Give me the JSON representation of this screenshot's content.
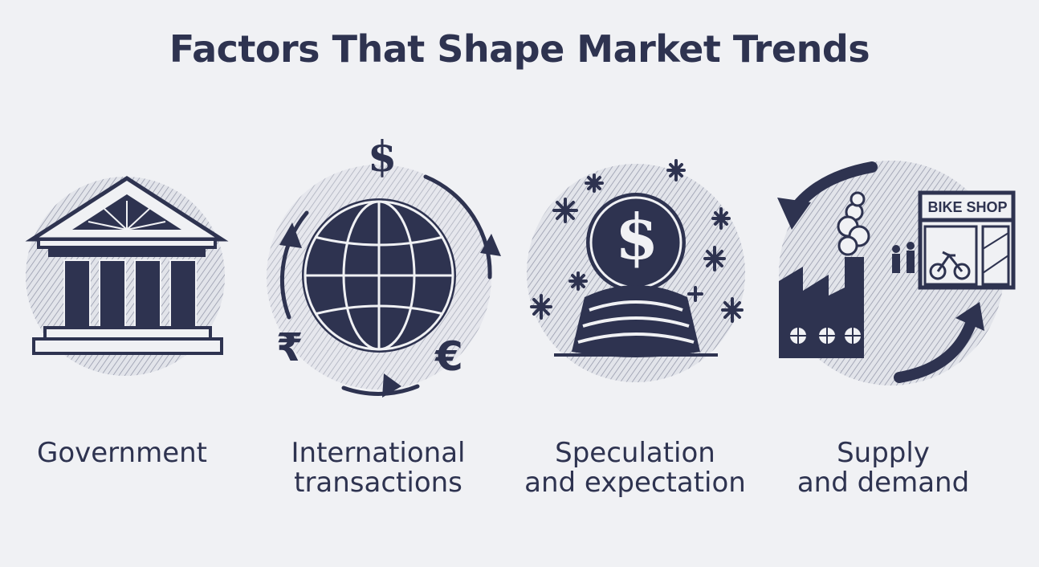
{
  "title": "Factors That Shape Market Trends",
  "factors": [
    {
      "label_lines": [
        "Government"
      ],
      "icon": "bank-building-icon"
    },
    {
      "label_lines": [
        "International",
        "transactions"
      ],
      "icon": "globe-currency-icon",
      "currency_symbols": [
        "$",
        "₹",
        "€"
      ]
    },
    {
      "label_lines": [
        "Speculation",
        "and expectation"
      ],
      "icon": "crystal-ball-icon",
      "ball_symbol": "$"
    },
    {
      "label_lines": [
        "Supply",
        "and demand"
      ],
      "icon": "factory-bike-shop-icon",
      "shop_sign": "BIKE SHOP"
    }
  ],
  "colors": {
    "ink": "#2e3350",
    "background": "#f0f1f4",
    "halftone": "#c9ccd6"
  }
}
